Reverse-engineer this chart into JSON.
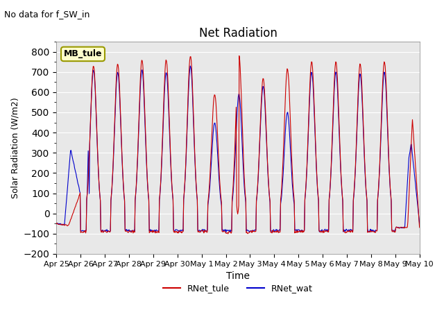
{
  "title": "Net Radiation",
  "subtitle": "No data for f_SW_in",
  "xlabel": "Time",
  "ylabel": "Solar Radiation (W/m2)",
  "ylim": [
    -200,
    850
  ],
  "yticks": [
    -200,
    -100,
    0,
    100,
    200,
    300,
    400,
    500,
    600,
    700,
    800
  ],
  "line_color_tule": "#cc0000",
  "line_color_wat": "#0000cc",
  "legend_label_tule": "RNet_tule",
  "legend_label_wat": "RNet_wat",
  "box_label": "MB_tule",
  "box_facecolor": "#ffffcc",
  "box_edgecolor": "#999900",
  "bg_color": "#e8e8e8",
  "night_value": -70,
  "night_value_min": -90,
  "start_day": 0,
  "n_days": 15,
  "peaks": [
    730,
    720,
    740,
    760,
    760,
    780,
    590,
    750,
    670,
    715,
    750,
    750,
    740,
    750,
    470
  ],
  "peaks_wat": [
    310,
    710,
    700,
    710,
    700,
    730,
    450,
    590,
    630,
    500,
    700,
    700,
    690,
    700,
    270
  ],
  "night_min": -90
}
